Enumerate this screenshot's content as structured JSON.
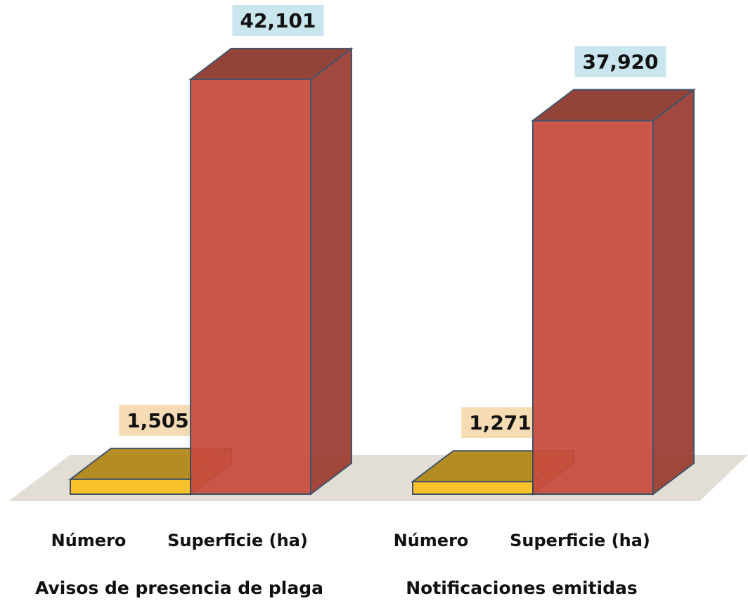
{
  "chart_data": {
    "type": "bar3d",
    "categories": [
      "Avisos de presencia de plaga",
      "Notificaciones emitidas"
    ],
    "series": [
      {
        "name": "Número",
        "color": "#fbbf1e",
        "values": [
          1505,
          1271
        ],
        "value_labels": [
          "1,505",
          "1,271"
        ],
        "label_color": "#f6dcb4"
      },
      {
        "name": "Superficie (ha)",
        "color": "#c84b3e",
        "values": [
          42101,
          37920
        ],
        "value_labels": [
          "42,101",
          "37,920"
        ],
        "label_color": "#c9e5ed"
      }
    ]
  }
}
